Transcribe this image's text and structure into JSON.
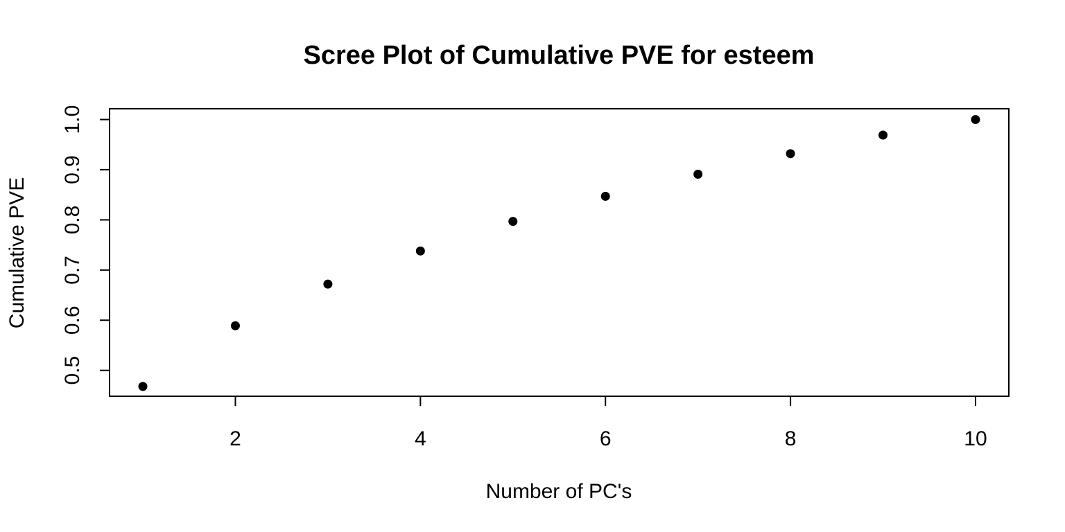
{
  "chart_data": {
    "type": "scatter",
    "title": "Scree Plot of Cumulative PVE for esteem",
    "xlabel": "Number of PC's",
    "ylabel": "Cumulative PVE",
    "x": [
      1,
      2,
      3,
      4,
      5,
      6,
      7,
      8,
      9,
      10
    ],
    "series": [
      {
        "values": [
          0.468,
          0.589,
          0.672,
          0.738,
          0.797,
          0.847,
          0.891,
          0.932,
          0.969,
          1.0
        ]
      }
    ],
    "xlim": [
      0.64,
      10.36
    ],
    "ylim": [
      0.4485,
      1.0215
    ],
    "xticks": [
      2,
      4,
      6,
      8,
      10
    ],
    "xtick_labels": [
      "2",
      "4",
      "6",
      "8",
      "10"
    ],
    "yticks": [
      0.5,
      0.6,
      0.7,
      0.8,
      0.9,
      1.0
    ],
    "ytick_labels": [
      "0.5",
      "0.6",
      "0.7",
      "0.8",
      "0.9",
      "1.0"
    ],
    "grid": false,
    "legend": "none",
    "marker_color": "#000000"
  }
}
